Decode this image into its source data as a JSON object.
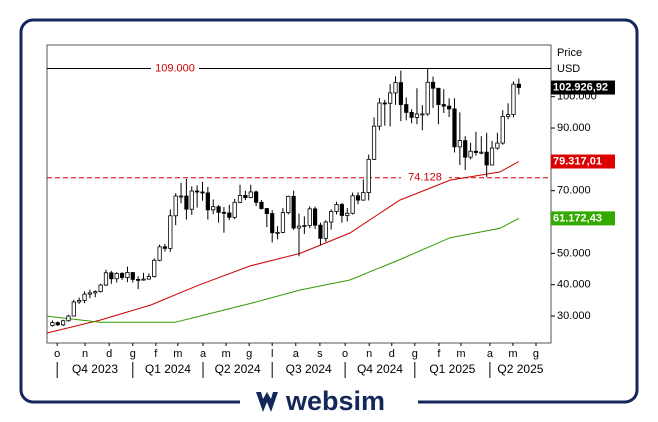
{
  "chart_data": {
    "type": "candlestick",
    "price_label": "Price",
    "unit_label": "USD",
    "brand": "websim",
    "ylim": [
      21400,
      116500
    ],
    "yticks": [
      {
        "value": 30000,
        "label": "30.000"
      },
      {
        "value": 40000,
        "label": "40.000"
      },
      {
        "value": 50000,
        "label": "50.000"
      },
      {
        "value": 60000,
        "label": "60.000"
      },
      {
        "value": 70000,
        "label": "70.000"
      },
      {
        "value": 80000,
        "label": "80.000"
      },
      {
        "value": 90000,
        "label": "90.000"
      },
      {
        "value": 100000,
        "label": "100.000"
      }
    ],
    "xlim": [
      -1,
      93
    ],
    "xticks": [
      {
        "value": 0.9,
        "label": "o"
      },
      {
        "value": 6.1,
        "label": "n"
      },
      {
        "value": 10.6,
        "label": "d"
      },
      {
        "value": 15.0,
        "label": "g"
      },
      {
        "value": 19.3,
        "label": "f"
      },
      {
        "value": 23.4,
        "label": "m"
      },
      {
        "value": 28.1,
        "label": "a"
      },
      {
        "value": 32.4,
        "label": "m"
      },
      {
        "value": 36.7,
        "label": "g"
      },
      {
        "value": 41.0,
        "label": "l"
      },
      {
        "value": 45.4,
        "label": "a"
      },
      {
        "value": 49.9,
        "label": "s"
      },
      {
        "value": 54.6,
        "label": "o"
      },
      {
        "value": 59.1,
        "label": "n"
      },
      {
        "value": 63.3,
        "label": "d"
      },
      {
        "value": 67.6,
        "label": "g"
      },
      {
        "value": 72.1,
        "label": "f"
      },
      {
        "value": 76.2,
        "label": "m"
      },
      {
        "value": 81.6,
        "label": "a"
      },
      {
        "value": 85.9,
        "label": "m"
      },
      {
        "value": 90.2,
        "label": "g"
      }
    ],
    "quarters": [
      "Q4 2023",
      "Q1 2024",
      "Q2 2024",
      "Q3 2024",
      "Q4 2024",
      "Q1 2025",
      "Q2 2025"
    ],
    "candles": {
      "open": [
        27000,
        27900,
        27200,
        28500,
        30000,
        34500,
        35000,
        37000,
        37400,
        37800,
        39900,
        43800,
        41900,
        43600,
        42300,
        43900,
        41700,
        41600,
        41800,
        42600,
        47800,
        52100,
        51600,
        62000,
        68300,
        68300,
        64100,
        69900,
        69600,
        69300,
        63900,
        64900,
        63100,
        62900,
        61500,
        66300,
        68500,
        67800,
        69600,
        66300,
        64300,
        62700,
        56600,
        56700,
        63000,
        68200,
        58100,
        58700,
        58900,
        64200,
        59000,
        54800,
        60000,
        63400,
        65600,
        62100,
        62800,
        68400,
        67000,
        69400,
        80000,
        90600,
        98000,
        97900,
        101200,
        104500,
        97500,
        95000,
        93400,
        94500,
        94500,
        104600,
        102700,
        97500,
        97000,
        96100,
        84000,
        86000,
        80700,
        82600,
        82200,
        82300,
        78200,
        83600,
        85200,
        93700,
        94300,
        104000
      ],
      "high": [
        28600,
        28300,
        28800,
        30400,
        35200,
        35900,
        37900,
        38400,
        38200,
        40300,
        44800,
        44400,
        44000,
        44000,
        45800,
        44000,
        42700,
        43800,
        43600,
        48400,
        52800,
        53000,
        64000,
        69200,
        72500,
        73800,
        71400,
        71700,
        72800,
        71200,
        67200,
        65400,
        64800,
        65500,
        67400,
        71900,
        70000,
        71900,
        70100,
        67000,
        64500,
        63800,
        58700,
        64500,
        68400,
        70000,
        62700,
        61800,
        65000,
        64900,
        59800,
        60600,
        64100,
        66500,
        66100,
        64500,
        69400,
        69500,
        73600,
        81500,
        93400,
        99600,
        99000,
        104000,
        106500,
        108300,
        99800,
        96000,
        102700,
        97300,
        109000,
        106400,
        102800,
        102400,
        99500,
        99500,
        95000,
        87400,
        85300,
        88800,
        87400,
        88500,
        85900,
        88500,
        95700,
        97900,
        104900,
        105800
      ],
      "low": [
        26600,
        26900,
        26800,
        28200,
        29900,
        33900,
        34100,
        35700,
        36000,
        37500,
        39600,
        40300,
        40700,
        41500,
        40800,
        40700,
        38600,
        41300,
        41600,
        42300,
        47500,
        50600,
        50500,
        59000,
        66000,
        60800,
        62300,
        64600,
        66800,
        60800,
        62500,
        59800,
        56600,
        60600,
        60900,
        66000,
        67000,
        67600,
        65100,
        64000,
        58400,
        53500,
        54500,
        56500,
        62400,
        57500,
        49100,
        56200,
        58000,
        57800,
        52600,
        53700,
        57600,
        62400,
        59800,
        60200,
        62400,
        65700,
        66800,
        66900,
        79800,
        89300,
        90800,
        90500,
        97400,
        92200,
        92500,
        91500,
        91200,
        89300,
        93900,
        96400,
        91200,
        94800,
        93500,
        82200,
        78200,
        76600,
        80000,
        81200,
        81600,
        74400,
        79000,
        83100,
        84700,
        92800,
        93400,
        100700
      ],
      "close": [
        27900,
        27200,
        28500,
        30000,
        34500,
        35000,
        37000,
        37400,
        37800,
        39900,
        43800,
        41900,
        43600,
        42300,
        43900,
        41700,
        41600,
        41800,
        42600,
        47800,
        52100,
        51600,
        62000,
        68300,
        68300,
        64100,
        69900,
        69600,
        69300,
        63900,
        64900,
        63100,
        62900,
        61500,
        66300,
        68500,
        67800,
        69600,
        66300,
        64300,
        62700,
        56600,
        56700,
        63000,
        68200,
        58100,
        58700,
        58900,
        64200,
        59000,
        54800,
        60000,
        63400,
        65600,
        62100,
        62800,
        68400,
        67000,
        69400,
        80000,
        90600,
        98000,
        97900,
        101200,
        104500,
        97500,
        95000,
        93400,
        94500,
        94500,
        104600,
        102700,
        97500,
        97000,
        96100,
        84000,
        86000,
        80700,
        82600,
        82200,
        82300,
        78200,
        83600,
        85200,
        93700,
        94300,
        104000,
        102926.92
      ],
      "up_color": "#ffffff",
      "down_color": "#000000"
    },
    "series": [
      {
        "color": "#cc0000",
        "x": [
          -1,
          8.9,
          18.3,
          27.5,
          36.9,
          46.2,
          55.5,
          64.8,
          74.2,
          83.5,
          87
        ],
        "values": [
          24600,
          28700,
          33500,
          40000,
          46000,
          50000,
          56500,
          67000,
          73400,
          76000,
          79317.01
        ]
      },
      {
        "color": "#339900",
        "x": [
          -1,
          8.9,
          22.9,
          27.5,
          36.9,
          46.2,
          55.5,
          64.8,
          74.2,
          83.5,
          87
        ],
        "values": [
          30000,
          28000,
          28000,
          30000,
          34000,
          38300,
          41500,
          48000,
          55000,
          58000,
          61172.43
        ]
      }
    ],
    "levels": [
      {
        "value": 109000,
        "label": "109.000",
        "style": "solid",
        "color": "#000000"
      },
      {
        "value": 74128,
        "label": "74.128",
        "style": "dashed",
        "color": "#cc0000"
      }
    ],
    "markers": [
      {
        "value": 102926.92,
        "label": "102.926,92",
        "color": "#000000"
      },
      {
        "value": 79317.01,
        "label": "79.317,01",
        "color": "#dd0000"
      },
      {
        "value": 61172.43,
        "label": "61.172,43",
        "color": "#33aa00"
      }
    ]
  }
}
